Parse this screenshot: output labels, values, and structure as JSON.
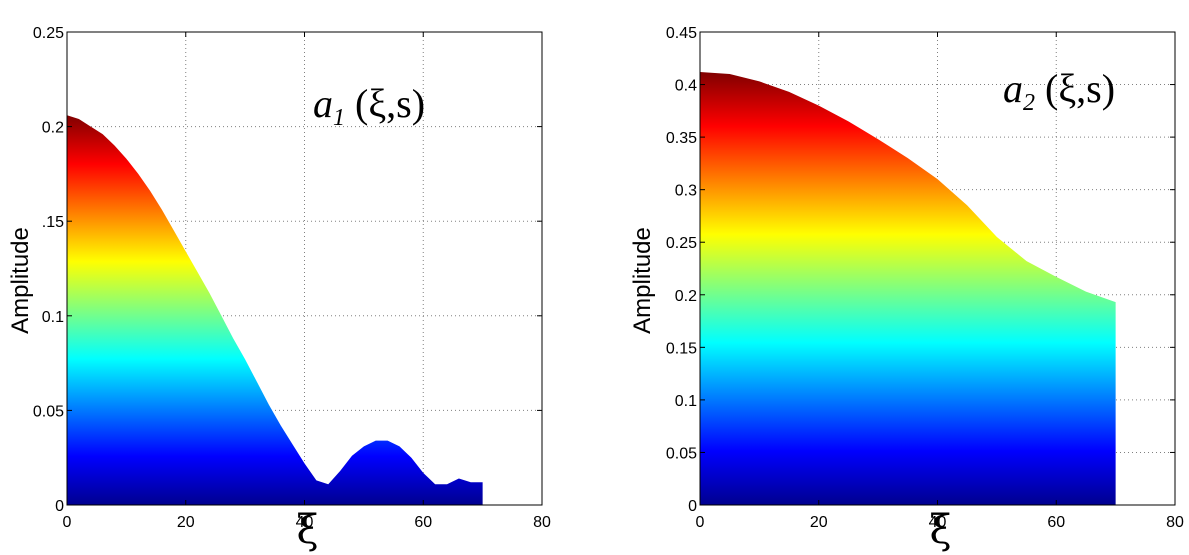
{
  "chart_data": [
    {
      "type": "area",
      "colormap": "jet",
      "grid": true,
      "xlabel": "ξ",
      "ylabel": "Amplitude",
      "xlim": [
        0,
        80
      ],
      "ylim": [
        0,
        0.25
      ],
      "xticks": [
        "0",
        "20",
        "40",
        "60",
        "80"
      ],
      "yticks": [
        "0",
        "0.05",
        "0.1",
        ".15",
        "0.2",
        "0.25"
      ],
      "annotation": {
        "base": "a",
        "sub": "1",
        "args": " (ξ,s)"
      },
      "series": [
        {
          "x": [
            0,
            2,
            4,
            6,
            8,
            10,
            12,
            14,
            16,
            18,
            20,
            22,
            24,
            26,
            28,
            30,
            32,
            34,
            36,
            38,
            40,
            42,
            44,
            46,
            48,
            50,
            52,
            54,
            56,
            58,
            60,
            62,
            64,
            66,
            68,
            70
          ],
          "y": [
            0.206,
            0.204,
            0.2,
            0.196,
            0.19,
            0.183,
            0.175,
            0.166,
            0.156,
            0.145,
            0.134,
            0.123,
            0.112,
            0.1,
            0.088,
            0.077,
            0.065,
            0.053,
            0.042,
            0.032,
            0.022,
            0.013,
            0.011,
            0.018,
            0.026,
            0.031,
            0.034,
            0.034,
            0.031,
            0.025,
            0.017,
            0.011,
            0.011,
            0.014,
            0.012,
            0.012
          ]
        }
      ]
    },
    {
      "type": "area",
      "colormap": "jet",
      "grid": true,
      "xlabel": "ξ",
      "ylabel": "Amplitude",
      "xlim": [
        0,
        80
      ],
      "ylim": [
        0,
        0.45
      ],
      "xticks": [
        "0",
        "20",
        "40",
        "60",
        "80"
      ],
      "yticks": [
        "0",
        "0.05",
        "0.1",
        "0.15",
        "0.2",
        "0.25",
        "0.3",
        "0.35",
        "0.4",
        "0.45"
      ],
      "annotation": {
        "base": "a",
        "sub": "2",
        "args": " (ξ,s)"
      },
      "series": [
        {
          "x": [
            0,
            5,
            10,
            15,
            20,
            25,
            30,
            35,
            40,
            45,
            50,
            55,
            60,
            65,
            70
          ],
          "y": [
            0.412,
            0.41,
            0.403,
            0.393,
            0.38,
            0.365,
            0.348,
            0.33,
            0.31,
            0.285,
            0.255,
            0.232,
            0.217,
            0.203,
            0.193
          ]
        }
      ]
    }
  ]
}
